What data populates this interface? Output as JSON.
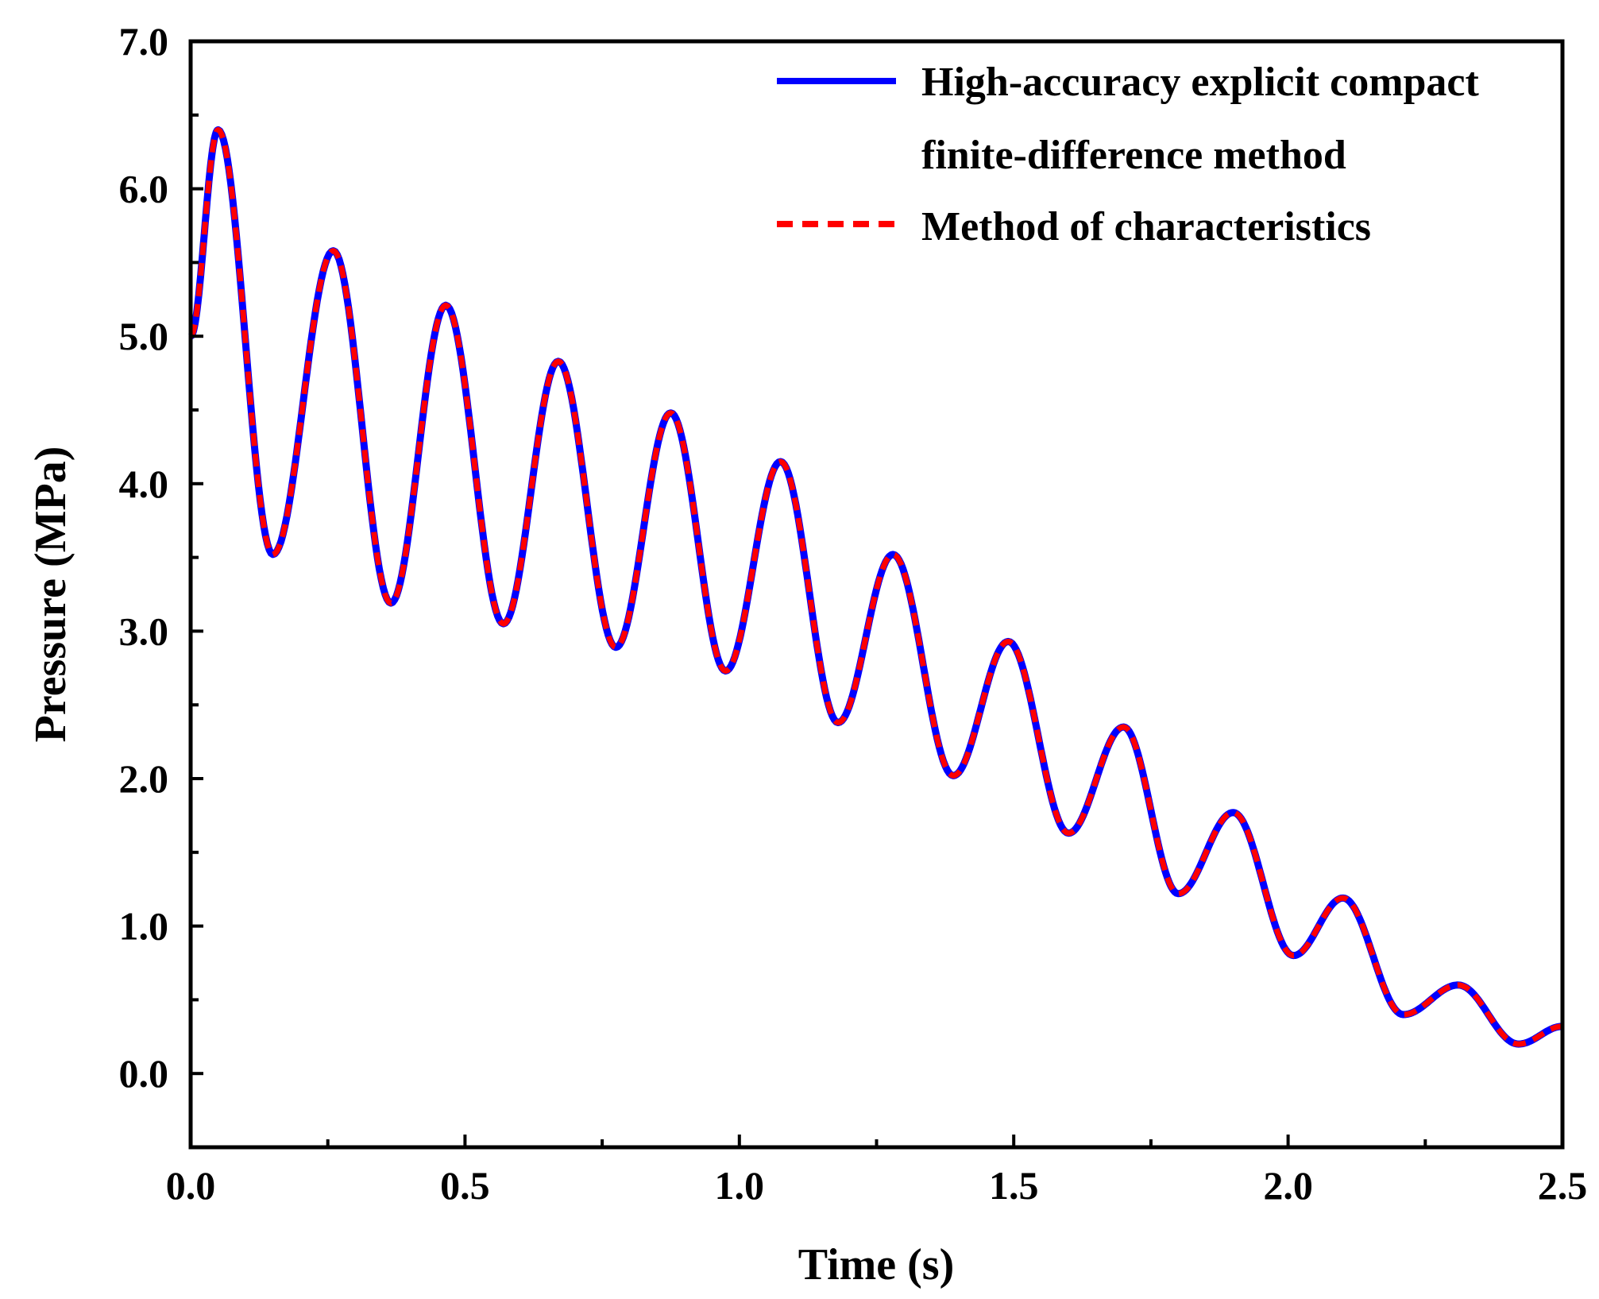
{
  "chart_data": {
    "type": "line",
    "title": "",
    "xlabel": "Time (s)",
    "ylabel": "Pressure (MPa)",
    "xlim": [
      0,
      2.5
    ],
    "ylim": [
      -0.5,
      7.0
    ],
    "xticks": [
      0.0,
      0.5,
      1.0,
      1.5,
      2.0,
      2.5
    ],
    "xtick_labels": [
      "0.0",
      "0.5",
      "1.0",
      "1.5",
      "2.0",
      "2.5"
    ],
    "yticks": [
      0.0,
      1.0,
      2.0,
      3.0,
      4.0,
      5.0,
      6.0,
      7.0
    ],
    "ytick_labels": [
      "0.0",
      "1.0",
      "2.0",
      "3.0",
      "4.0",
      "5.0",
      "6.0",
      "7.0"
    ],
    "grid": false,
    "legend_position": "top-right",
    "legend": [
      {
        "line1": "High-accuracy explicit compact",
        "line2": "finite-difference method"
      },
      {
        "line1": "Method of characteristics",
        "line2": ""
      }
    ],
    "series": [
      {
        "name": "High-accuracy explicit compact finite-difference method",
        "color": "#0000ff",
        "style": "solid",
        "x": [
          0.0,
          0.05,
          0.15,
          0.26,
          0.365,
          0.465,
          0.57,
          0.67,
          0.775,
          0.875,
          0.975,
          1.075,
          1.18,
          1.28,
          1.39,
          1.49,
          1.6,
          1.7,
          1.8,
          1.9,
          2.01,
          2.1,
          2.21,
          2.31,
          2.42,
          2.5
        ],
        "y": [
          5.0,
          6.4,
          3.52,
          5.58,
          3.19,
          5.21,
          3.05,
          4.83,
          2.89,
          4.48,
          2.73,
          4.15,
          2.38,
          3.52,
          2.02,
          2.93,
          1.63,
          2.35,
          1.22,
          1.77,
          0.8,
          1.19,
          0.4,
          0.6,
          0.2,
          0.32
        ]
      },
      {
        "name": "Method of characteristics",
        "color": "#ff0000",
        "style": "dashed",
        "x": [
          0.0,
          0.05,
          0.15,
          0.26,
          0.365,
          0.465,
          0.57,
          0.67,
          0.775,
          0.875,
          0.975,
          1.075,
          1.18,
          1.28,
          1.39,
          1.49,
          1.6,
          1.7,
          1.8,
          1.9,
          2.01,
          2.1,
          2.21,
          2.31,
          2.42,
          2.5
        ],
        "y": [
          5.0,
          6.4,
          3.52,
          5.58,
          3.19,
          5.21,
          3.05,
          4.83,
          2.89,
          4.48,
          2.73,
          4.15,
          2.38,
          3.52,
          2.02,
          2.93,
          1.63,
          2.35,
          1.22,
          1.77,
          0.8,
          1.19,
          0.4,
          0.6,
          0.2,
          0.32
        ]
      }
    ]
  }
}
